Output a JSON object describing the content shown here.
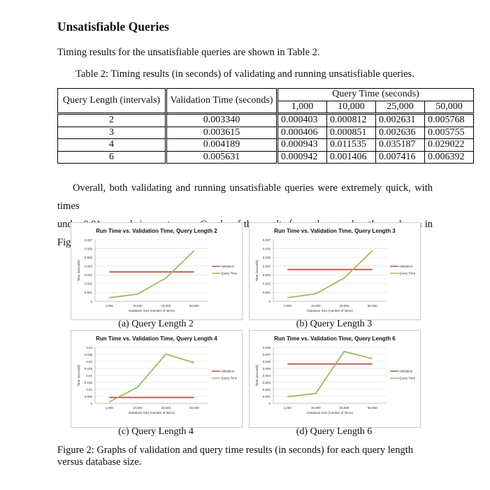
{
  "section_title": "Unsatisfiable Queries",
  "intro": "Timing results for the unsatisfiable queries are shown in Table 2.",
  "table": {
    "caption": "Table 2: Timing results (in seconds) of validating and running unsatisfiable queries.",
    "headers": {
      "length": "Query Length (intervals)",
      "validation": "Validation Time (seconds)",
      "query_group": "Query Time (seconds)",
      "sizes": [
        "1,000",
        "10,000",
        "25,000",
        "50,000"
      ]
    },
    "rows": [
      {
        "length": "2",
        "validation": "0.003340",
        "times": [
          "0.000403",
          "0.000812",
          "0.002631",
          "0.005768"
        ]
      },
      {
        "length": "3",
        "validation": "0.003615",
        "times": [
          "0.000406",
          "0.000851",
          "0.002636",
          "0.005755"
        ]
      },
      {
        "length": "4",
        "validation": "0.004189",
        "times": [
          "0.000943",
          "0.011535",
          "0.035187",
          "0.029022"
        ]
      },
      {
        "length": "6",
        "validation": "0.005631",
        "times": [
          "0.000942",
          "0.001406",
          "0.007416",
          "0.006392"
        ]
      }
    ]
  },
  "paragraph": {
    "line1": "Overall, both validating and running unsatisfiable queries were extremely quick, with times",
    "line2": "under 0.01 seconds in most cases. Graphs of the results for each query length are shown in Figure 2."
  },
  "colors": {
    "validation": "#c0504d",
    "query": "#9bbb59"
  },
  "chart_data": [
    {
      "type": "line",
      "title": "Run Time vs. Validation Time, Query Length 2",
      "subcaption": "(a) Query Length 2",
      "categories": [
        "1,000",
        "10,000",
        "25,000",
        "50,000"
      ],
      "x": [
        1000,
        10000,
        25000,
        50000
      ],
      "xlabel": "Database Size (number of items)",
      "ylabel": "Time (seconds)",
      "ylim": [
        0,
        0.007
      ],
      "yticks": [
        "0",
        "0.001",
        "0.002",
        "0.003",
        "0.004",
        "0.005",
        "0.006",
        "0.007"
      ],
      "series": [
        {
          "name": "Validation",
          "values": [
            0.00334,
            0.00334,
            0.00334,
            0.00334
          ]
        },
        {
          "name": "Query Time",
          "values": [
            0.000403,
            0.000812,
            0.002631,
            0.005768
          ]
        }
      ],
      "grid": true,
      "legend": "right"
    },
    {
      "type": "line",
      "title": "Run Time vs. Validation Time, Query Length 3",
      "subcaption": "(b) Query Length 3",
      "categories": [
        "1,000",
        "10,000",
        "25,000",
        "50,000"
      ],
      "x": [
        1000,
        10000,
        25000,
        50000
      ],
      "xlabel": "Database Size (number of items)",
      "ylabel": "Time (seconds)",
      "ylim": [
        0,
        0.007
      ],
      "yticks": [
        "0",
        "0.001",
        "0.002",
        "0.003",
        "0.004",
        "0.005",
        "0.006",
        "0.007"
      ],
      "series": [
        {
          "name": "Validation",
          "values": [
            0.003615,
            0.003615,
            0.003615,
            0.003615
          ]
        },
        {
          "name": "Query Time",
          "values": [
            0.000406,
            0.000851,
            0.002636,
            0.005755
          ]
        }
      ],
      "grid": true,
      "legend": "right"
    },
    {
      "type": "line",
      "title": "Run Time vs. Validation Time, Query Length 4",
      "subcaption": "(c) Query Length 4",
      "categories": [
        "1,000",
        "10,000",
        "25,000",
        "50,000"
      ],
      "x": [
        1000,
        10000,
        25000,
        50000
      ],
      "xlabel": "Database Size (number of items)",
      "ylabel": "Time (seconds)",
      "ylim": [
        0,
        0.04
      ],
      "yticks": [
        "0",
        "0.005",
        "0.01",
        "0.015",
        "0.02",
        "0.025",
        "0.03",
        "0.035",
        "0.04"
      ],
      "series": [
        {
          "name": "Validation",
          "values": [
            0.004189,
            0.004189,
            0.004189,
            0.004189
          ]
        },
        {
          "name": "Query Time",
          "values": [
            0.000943,
            0.011535,
            0.035187,
            0.029022
          ]
        }
      ],
      "grid": true,
      "legend": "right"
    },
    {
      "type": "line",
      "title": "Run Time vs. Validation Time, Query Length 6",
      "subcaption": "(d) Query Length 6",
      "categories": [
        "1,000",
        "10,000",
        "25,000",
        "50,000"
      ],
      "x": [
        1000,
        10000,
        25000,
        50000
      ],
      "xlabel": "Database Size (number of items)",
      "ylabel": "Time (seconds)",
      "ylim": [
        0,
        0.008
      ],
      "yticks": [
        "0",
        "0.001",
        "0.002",
        "0.003",
        "0.004",
        "0.005",
        "0.006",
        "0.007",
        "0.008"
      ],
      "series": [
        {
          "name": "Validation",
          "values": [
            0.005631,
            0.005631,
            0.005631,
            0.005631
          ]
        },
        {
          "name": "Query Time",
          "values": [
            0.000942,
            0.001406,
            0.007416,
            0.006392
          ]
        }
      ],
      "grid": true,
      "legend": "right"
    }
  ],
  "figure_caption": "Figure 2: Graphs of validation and query time results (in seconds) for each query length versus database size."
}
